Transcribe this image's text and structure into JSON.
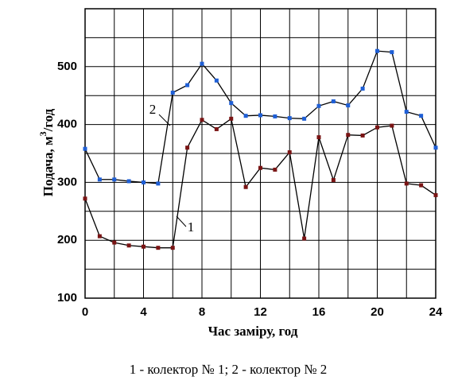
{
  "chart_data": {
    "type": "line",
    "x_label": "Час заміру, год",
    "y_label": [
      "Подача, м",
      "3",
      "/год"
    ],
    "caption": "1 - колектор № 1;  2 - колектор № 2",
    "x": [
      0,
      1,
      2,
      3,
      4,
      5,
      6,
      7,
      8,
      9,
      10,
      11,
      12,
      13,
      14,
      15,
      16,
      17,
      18,
      19,
      20,
      21,
      22,
      23,
      24
    ],
    "series": [
      {
        "name": "1",
        "color": "#7a1414",
        "values": [
          272,
          207,
          196,
          191,
          189,
          187,
          187,
          360,
          408,
          392,
          410,
          292,
          325,
          322,
          352,
          203,
          378,
          304,
          382,
          381,
          395,
          398,
          298,
          295,
          278
        ]
      },
      {
        "name": "2",
        "color": "#1f5fd6",
        "values": [
          358,
          305,
          305,
          302,
          300,
          298,
          455,
          468,
          505,
          476,
          437,
          415,
          416,
          414,
          411,
          410,
          432,
          440,
          433,
          462,
          527,
          525,
          422,
          415,
          360
        ]
      }
    ],
    "xlim": [
      0,
      24
    ],
    "ylim": [
      100,
      600
    ],
    "xticks": [
      0,
      4,
      8,
      12,
      16,
      20,
      24
    ],
    "yticks": [
      100,
      200,
      300,
      400,
      500
    ],
    "xminorticks": [
      2,
      6,
      10,
      14,
      18,
      22
    ],
    "yminorticks": [
      150,
      250,
      350,
      450,
      550
    ],
    "grid": true
  }
}
